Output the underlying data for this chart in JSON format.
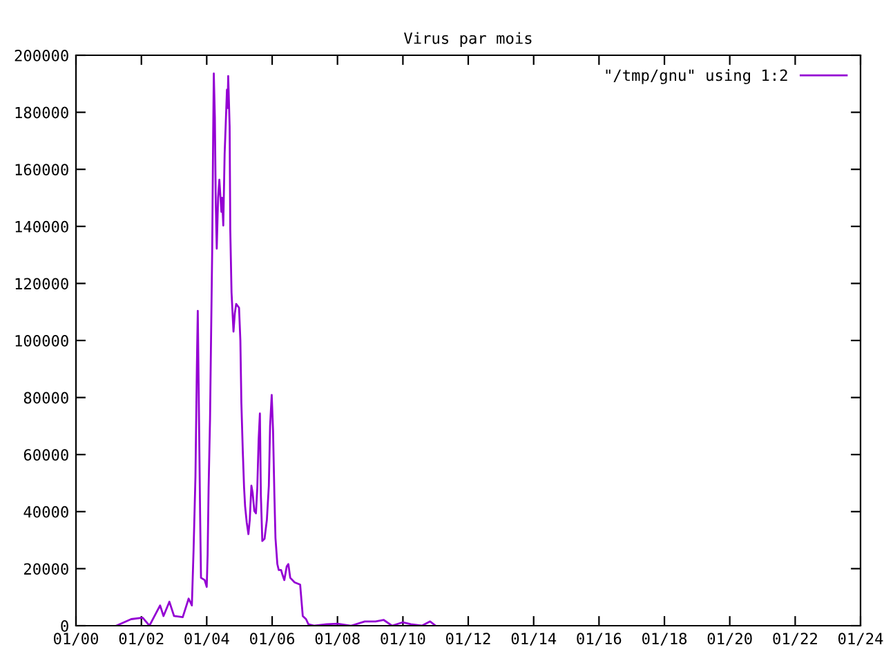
{
  "chart_data": {
    "type": "line",
    "title": "Virus par mois",
    "x": [
      "2001-03-27",
      "2001-09-09",
      "2002-01-15",
      "2002-04-01",
      "2002-07-29",
      "2002-09-05",
      "2002-11-10",
      "2003-01-01",
      "2003-04-08",
      "2003-06-13",
      "2003-07-19",
      "2003-08-07",
      "2003-08-28",
      "2003-09-13",
      "2003-09-23",
      "2003-10-19",
      "2003-10-29",
      "2003-12-09",
      "2004-01-01",
      "2004-01-11",
      "2004-01-22",
      "2004-02-07",
      "2004-02-17",
      "2004-03-02",
      "2004-03-13",
      "2004-03-20",
      "2004-04-01",
      "2004-04-11",
      "2004-04-22",
      "2004-05-07",
      "2004-05-21",
      "2004-06-13",
      "2004-06-20",
      "2004-07-04",
      "2004-07-19",
      "2004-08-03",
      "2004-08-14",
      "2004-08-21",
      "2004-08-28",
      "2004-09-13",
      "2004-09-20",
      "2004-10-04",
      "2004-10-26",
      "2004-11-10",
      "2004-11-25",
      "2004-12-27",
      "2005-01-11",
      "2005-01-22",
      "2005-02-07",
      "2005-02-21",
      "2005-03-05",
      "2005-03-23",
      "2005-04-11",
      "2005-04-26",
      "2005-05-14",
      "2005-05-28",
      "2005-06-16",
      "2005-07-04",
      "2005-07-19",
      "2005-08-03",
      "2005-08-17",
      "2005-08-28",
      "2005-09-13",
      "2005-10-08",
      "2005-11-03",
      "2005-11-25",
      "2005-12-09",
      "2005-12-27",
      "2006-01-11",
      "2006-01-26",
      "2006-02-07",
      "2006-02-28",
      "2006-03-16",
      "2006-04-11",
      "2006-04-26",
      "2006-05-17",
      "2006-06-13",
      "2006-07-01",
      "2006-07-22",
      "2006-09-09",
      "2006-11-10",
      "2006-11-25",
      "2006-12-09",
      "2007-01-15",
      "2007-02-10",
      "2007-04-19",
      "2007-09-01",
      "2008-01-01",
      "2008-06-01",
      "2008-11-01",
      "2009-03-01",
      "2009-06-01",
      "2009-09-01",
      "2010-01-01",
      "2010-04-01",
      "2010-08-01",
      "2010-11-01",
      "2011-01-01"
    ],
    "series": [
      {
        "name": "\"/tmp/gnu\" using 1:2",
        "color": "#9400d3",
        "values": [
          0,
          2300,
          2800,
          0,
          7100,
          3400,
          8400,
          3400,
          3000,
          9500,
          7100,
          26500,
          52300,
          91000,
          110400,
          39400,
          16800,
          16000,
          13600,
          24800,
          48300,
          72500,
          97500,
          131400,
          172500,
          193600,
          178200,
          148300,
          132200,
          150000,
          156400,
          145100,
          150000,
          140300,
          165300,
          178200,
          187900,
          181500,
          192700,
          175000,
          139000,
          116900,
          103100,
          109600,
          112800,
          111500,
          99900,
          78100,
          61200,
          48600,
          41800,
          36200,
          32100,
          37100,
          49100,
          46600,
          40200,
          39400,
          48300,
          65200,
          74400,
          45800,
          29700,
          30500,
          37100,
          49100,
          70000,
          80900,
          68400,
          45800,
          30800,
          21600,
          19500,
          19500,
          17900,
          16000,
          20800,
          21600,
          16800,
          15200,
          14400,
          8700,
          3400,
          2300,
          500,
          0,
          500,
          700,
          0,
          1500,
          1500,
          2000,
          0,
          1200,
          500,
          0,
          1500,
          0
        ]
      }
    ],
    "xlim": [
      "2000-01",
      "2024-01"
    ],
    "xticks": [
      {
        "value": "2000-01",
        "label": "01/00"
      },
      {
        "value": "2002-01",
        "label": "01/02"
      },
      {
        "value": "2004-01",
        "label": "01/04"
      },
      {
        "value": "2006-01",
        "label": "01/06"
      },
      {
        "value": "2008-01",
        "label": "01/08"
      },
      {
        "value": "2010-01",
        "label": "01/10"
      },
      {
        "value": "2012-01",
        "label": "01/12"
      },
      {
        "value": "2014-01",
        "label": "01/14"
      },
      {
        "value": "2016-01",
        "label": "01/16"
      },
      {
        "value": "2018-01",
        "label": "01/18"
      },
      {
        "value": "2020-01",
        "label": "01/20"
      },
      {
        "value": "2022-01",
        "label": "01/22"
      },
      {
        "value": "2024-01",
        "label": "01/24"
      }
    ],
    "ylim": [
      0,
      200000
    ],
    "yticks": [
      0,
      20000,
      40000,
      60000,
      80000,
      100000,
      120000,
      140000,
      160000,
      180000,
      200000
    ],
    "grid": false,
    "legend": "top right",
    "marker": "none",
    "line_style": "solid"
  }
}
